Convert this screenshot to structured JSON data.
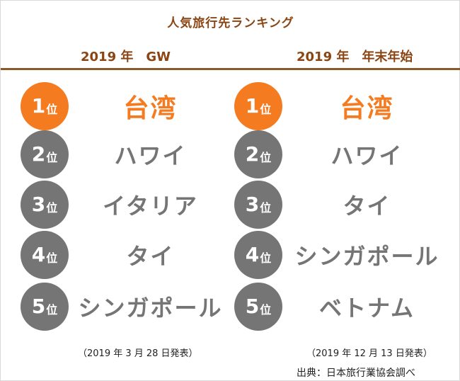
{
  "title": "人気旅行先ランキング",
  "unit_label": "位",
  "columns": [
    {
      "heading": "2019 年　GW",
      "note": "（2019 年 3 月 28 日発表）",
      "ranks": [
        {
          "rank": "1",
          "destination": "台湾"
        },
        {
          "rank": "2",
          "destination": "ハワイ"
        },
        {
          "rank": "3",
          "destination": "イタリア"
        },
        {
          "rank": "4",
          "destination": "タイ"
        },
        {
          "rank": "5",
          "destination": "シンガポール"
        }
      ]
    },
    {
      "heading": "2019 年　年末年始",
      "note": "（2019 年 12 月 13 日発表）",
      "ranks": [
        {
          "rank": "1",
          "destination": "台湾"
        },
        {
          "rank": "2",
          "destination": "ハワイ"
        },
        {
          "rank": "3",
          "destination": "タイ"
        },
        {
          "rank": "4",
          "destination": "シンガポール"
        },
        {
          "rank": "5",
          "destination": "ベトナム"
        }
      ]
    }
  ],
  "source": "出典：日本旅行業協会調べ",
  "colors": {
    "accent": "#f47b20",
    "gray": "#757575",
    "brown": "#8b4513"
  }
}
